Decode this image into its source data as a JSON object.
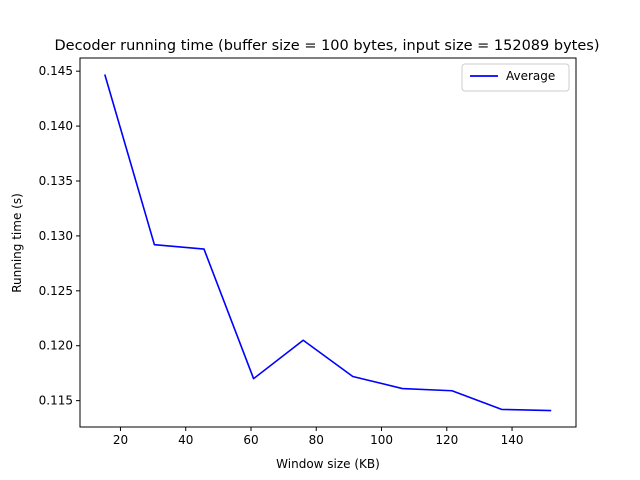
{
  "chart_data": {
    "type": "line",
    "title": "Decoder running time (buffer size = 100 bytes, input size = 152089 bytes)",
    "xlabel": "Window size (KB)",
    "ylabel": "Running time (s)",
    "xlim": [
      7.6,
      159.6
    ],
    "ylim": [
      0.1126,
      0.1462
    ],
    "xticks": [
      20,
      40,
      60,
      80,
      100,
      120,
      140
    ],
    "yticks": [
      0.115,
      0.12,
      0.125,
      0.13,
      0.135,
      0.14,
      0.145
    ],
    "xtick_labels": [
      "20",
      "40",
      "60",
      "80",
      "100",
      "120",
      "140"
    ],
    "ytick_labels": [
      "0.115",
      "0.120",
      "0.125",
      "0.130",
      "0.135",
      "0.140",
      "0.145"
    ],
    "grid": false,
    "legend": {
      "position": "top-right",
      "entries": [
        "Average"
      ]
    },
    "series": [
      {
        "name": "Average",
        "color": "#0000ff",
        "x": [
          15.2,
          30.4,
          45.6,
          60.8,
          76.0,
          91.2,
          106.4,
          121.6,
          136.8,
          152.0
        ],
        "y": [
          0.1447,
          0.1292,
          0.1288,
          0.117,
          0.1205,
          0.1172,
          0.1161,
          0.1159,
          0.1142,
          0.1141
        ]
      }
    ]
  }
}
